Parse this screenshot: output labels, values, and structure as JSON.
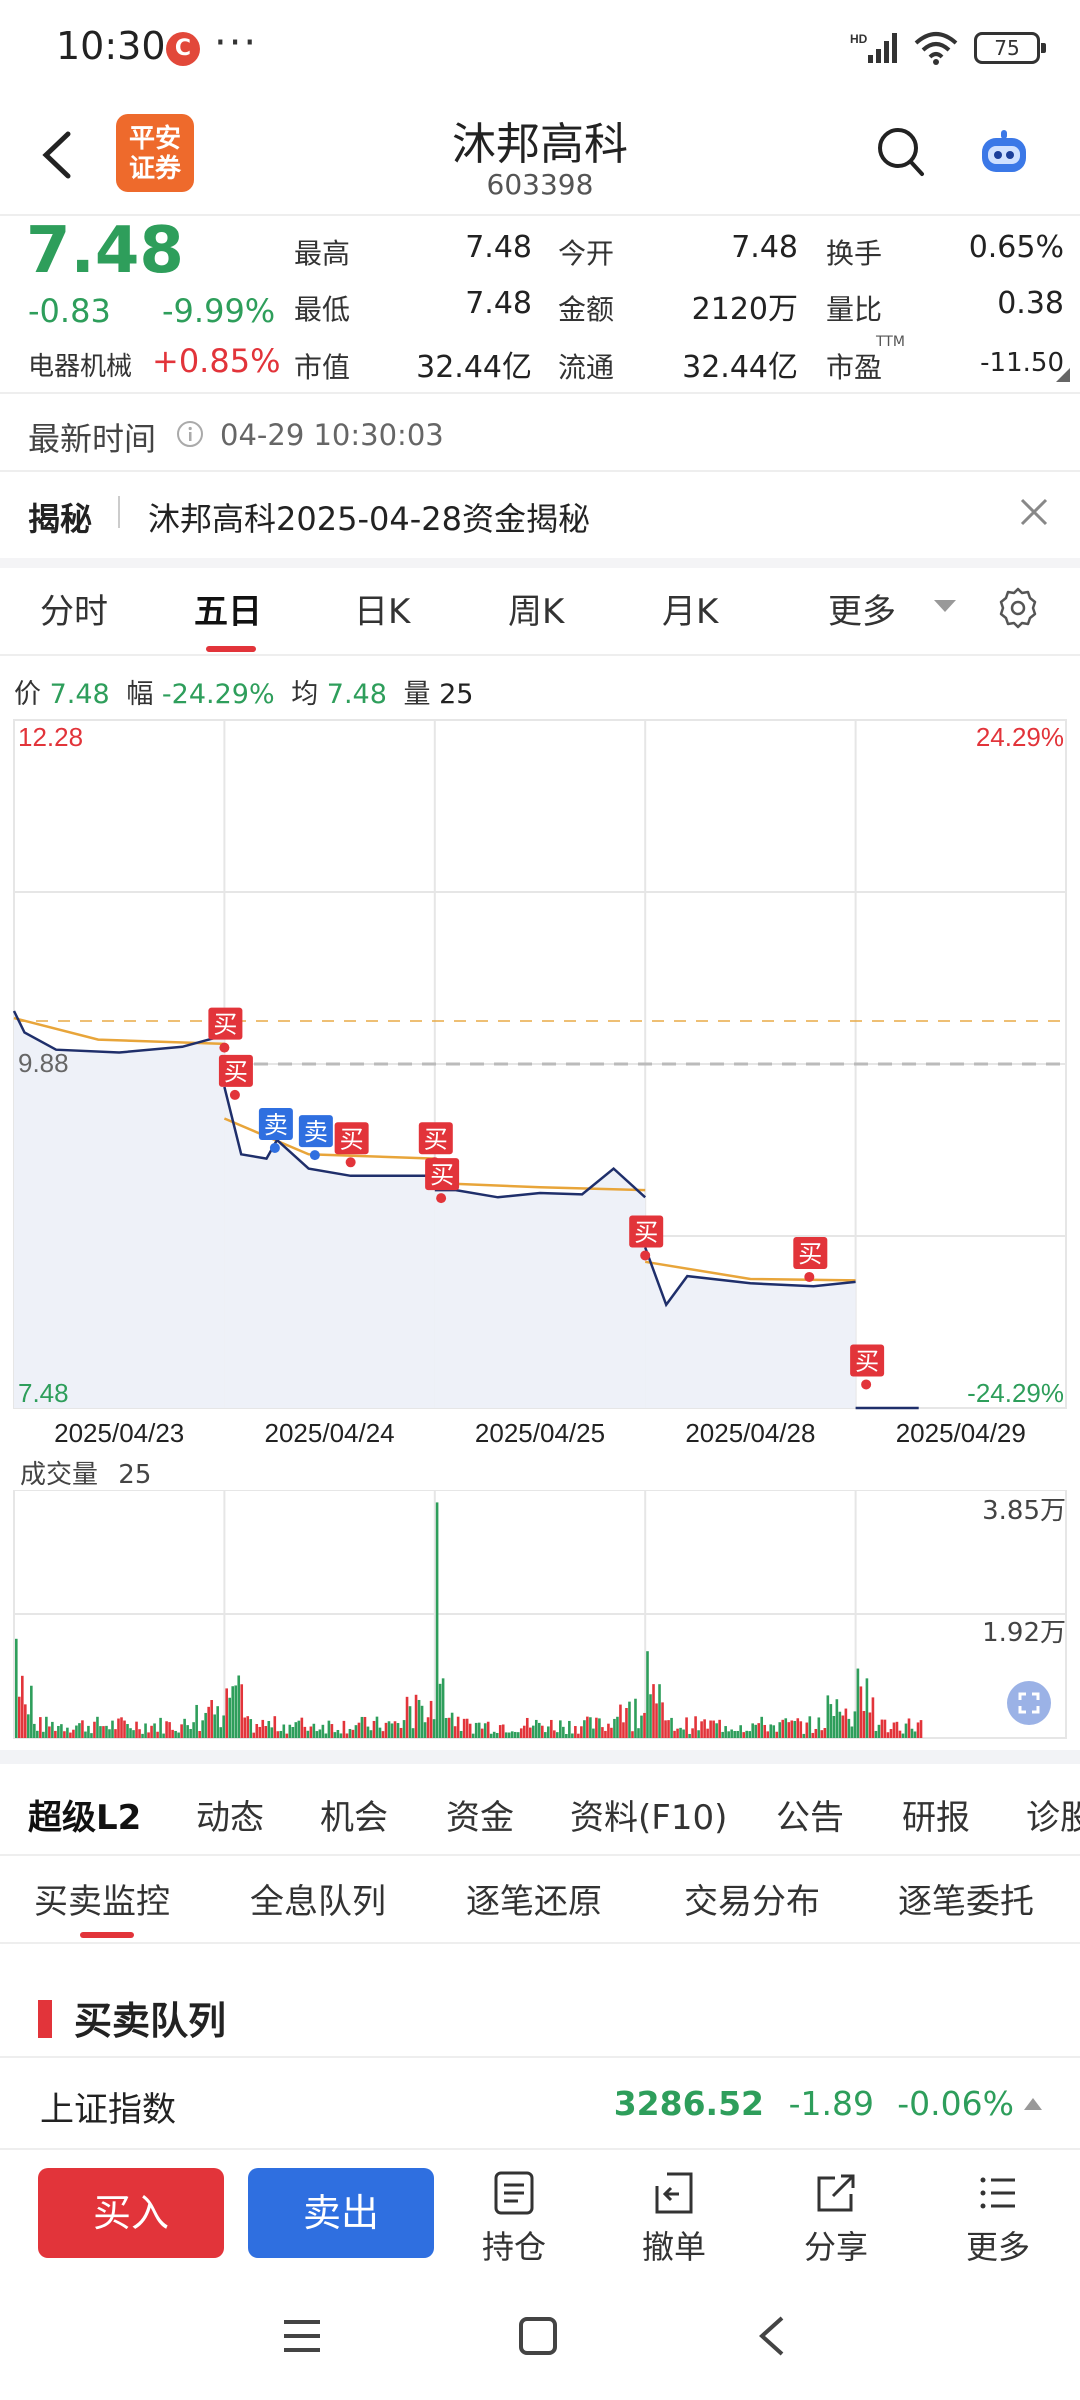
{
  "status_bar": {
    "time": "10:30",
    "battery": "75",
    "app_badge": "C",
    "dots": "···"
  },
  "header": {
    "title": "沐邦高科",
    "code": "603398",
    "broker_logo": "平安\n证券"
  },
  "quote": {
    "price": "7.48",
    "change": "-0.83",
    "change_pct": "-9.99%",
    "sector": "电器机械",
    "sector_pct": "+0.85%",
    "fields": [
      {
        "label": "最高",
        "value": "7.48"
      },
      {
        "label": "今开",
        "value": "7.48"
      },
      {
        "label": "换手",
        "value": "0.65%"
      },
      {
        "label": "最低",
        "value": "7.48"
      },
      {
        "label": "金额",
        "value": "2120万"
      },
      {
        "label": "量比",
        "value": "0.38"
      },
      {
        "label": "市值",
        "value": "32.44亿"
      },
      {
        "label": "流通",
        "value": "32.44亿"
      },
      {
        "label": "市盈",
        "value": "-11.50"
      }
    ],
    "pe_sup": "TTM"
  },
  "update": {
    "label": "最新时间",
    "time": "04-29 10:30:03"
  },
  "news": {
    "tag": "揭秘",
    "text": "沐邦高科2025-04-28资金揭秘"
  },
  "chart_tabs": [
    "分时",
    "五日",
    "日K",
    "周K",
    "月K",
    "更多"
  ],
  "chart_info": {
    "price_label": "价",
    "price": "7.48",
    "amp_label": "幅",
    "amp": "-24.29%",
    "avg_label": "均",
    "avg": "7.48",
    "vol_label": "量",
    "vol": "25"
  },
  "chart_data": {
    "type": "line",
    "x_labels": [
      "2025/04/23",
      "2025/04/24",
      "2025/04/25",
      "2025/04/28",
      "2025/04/29"
    ],
    "y_top": "12.28",
    "y_bottom": "7.48",
    "y_mid": "9.88",
    "pct_top": "24.29%",
    "pct_bottom": "-24.29%",
    "ylim": [
      7.48,
      12.28
    ],
    "price_series": [
      {
        "day": 0,
        "t": 0.0,
        "v": 10.25
      },
      {
        "day": 0,
        "t": 0.05,
        "v": 10.1
      },
      {
        "day": 0,
        "t": 0.2,
        "v": 9.98
      },
      {
        "day": 0,
        "t": 0.5,
        "v": 9.96
      },
      {
        "day": 0,
        "t": 0.8,
        "v": 10.0
      },
      {
        "day": 0,
        "t": 1.0,
        "v": 10.08
      },
      {
        "day": 1,
        "t": 0.0,
        "v": 9.72
      },
      {
        "day": 1,
        "t": 0.08,
        "v": 9.25
      },
      {
        "day": 1,
        "t": 0.2,
        "v": 9.22
      },
      {
        "day": 1,
        "t": 0.25,
        "v": 9.35
      },
      {
        "day": 1,
        "t": 0.4,
        "v": 9.15
      },
      {
        "day": 1,
        "t": 0.6,
        "v": 9.1
      },
      {
        "day": 1,
        "t": 0.8,
        "v": 9.1
      },
      {
        "day": 1,
        "t": 1.0,
        "v": 9.1
      },
      {
        "day": 2,
        "t": 0.0,
        "v": 9.0
      },
      {
        "day": 2,
        "t": 0.1,
        "v": 9.0
      },
      {
        "day": 2,
        "t": 0.3,
        "v": 8.95
      },
      {
        "day": 2,
        "t": 0.5,
        "v": 8.98
      },
      {
        "day": 2,
        "t": 0.7,
        "v": 8.97
      },
      {
        "day": 2,
        "t": 0.85,
        "v": 9.15
      },
      {
        "day": 2,
        "t": 1.0,
        "v": 8.95
      },
      {
        "day": 3,
        "t": 0.0,
        "v": 8.6
      },
      {
        "day": 3,
        "t": 0.1,
        "v": 8.2
      },
      {
        "day": 3,
        "t": 0.2,
        "v": 8.4
      },
      {
        "day": 3,
        "t": 0.5,
        "v": 8.35
      },
      {
        "day": 3,
        "t": 0.8,
        "v": 8.33
      },
      {
        "day": 3,
        "t": 1.0,
        "v": 8.36
      },
      {
        "day": 4,
        "t": 0.0,
        "v": 7.48
      },
      {
        "day": 4,
        "t": 0.3,
        "v": 7.48
      }
    ],
    "avg_series": [
      {
        "day": 0,
        "t": 0.0,
        "v": 10.2
      },
      {
        "day": 0,
        "t": 0.4,
        "v": 10.05
      },
      {
        "day": 0,
        "t": 1.0,
        "v": 10.02
      },
      {
        "day": 1,
        "t": 0.0,
        "v": 9.5
      },
      {
        "day": 1,
        "t": 0.4,
        "v": 9.25
      },
      {
        "day": 1,
        "t": 1.0,
        "v": 9.22
      },
      {
        "day": 2,
        "t": 0.0,
        "v": 9.05
      },
      {
        "day": 2,
        "t": 0.5,
        "v": 9.02
      },
      {
        "day": 2,
        "t": 1.0,
        "v": 9.0
      },
      {
        "day": 3,
        "t": 0.0,
        "v": 8.5
      },
      {
        "day": 3,
        "t": 0.5,
        "v": 8.38
      },
      {
        "day": 3,
        "t": 1.0,
        "v": 8.37
      }
    ],
    "markers": [
      {
        "label": "买",
        "day": 1,
        "t": 0.0,
        "v": 10.05,
        "kind": "buy"
      },
      {
        "label": "买",
        "day": 1,
        "t": 0.05,
        "v": 9.72,
        "kind": "buy"
      },
      {
        "label": "卖",
        "day": 1,
        "t": 0.24,
        "v": 9.35,
        "kind": "sell"
      },
      {
        "label": "卖",
        "day": 1,
        "t": 0.43,
        "v": 9.3,
        "kind": "sell"
      },
      {
        "label": "买",
        "day": 1,
        "t": 0.6,
        "v": 9.25,
        "kind": "buy"
      },
      {
        "label": "买",
        "day": 2,
        "t": 0.0,
        "v": 9.25,
        "kind": "buy"
      },
      {
        "label": "买",
        "day": 2,
        "t": 0.03,
        "v": 9.0,
        "kind": "buy"
      },
      {
        "label": "买",
        "day": 3,
        "t": 0.0,
        "v": 8.6,
        "kind": "buy"
      },
      {
        "label": "买",
        "day": 3,
        "t": 0.78,
        "v": 8.45,
        "kind": "buy"
      },
      {
        "label": "买",
        "day": 4,
        "t": 0.05,
        "v": 7.7,
        "kind": "buy"
      }
    ]
  },
  "volume_chart": {
    "label": "成交量",
    "value": "25",
    "y_top": "3.85万",
    "y_mid": "1.92万"
  },
  "bottom_tabs": [
    "超级L2",
    "动态",
    "机会",
    "资金",
    "资料(F10)",
    "公告",
    "研报",
    "诊股"
  ],
  "sub_tabs": [
    "买卖监控",
    "全息队列",
    "逐笔还原",
    "交易分布",
    "逐笔委托"
  ],
  "section": {
    "title": "买卖队列"
  },
  "index": {
    "name": "上证指数",
    "value": "3286.52",
    "change": "-1.89",
    "pct": "-0.06%"
  },
  "actions": {
    "buy": "买入",
    "sell": "卖出",
    "tools": [
      "持仓",
      "撤单",
      "分享",
      "更多"
    ]
  },
  "colors": {
    "green": "#2e9e5b",
    "red": "#e2343a",
    "blue": "#2f6fe0",
    "avg": "#e8a53a",
    "line": "#1f2f6b"
  }
}
